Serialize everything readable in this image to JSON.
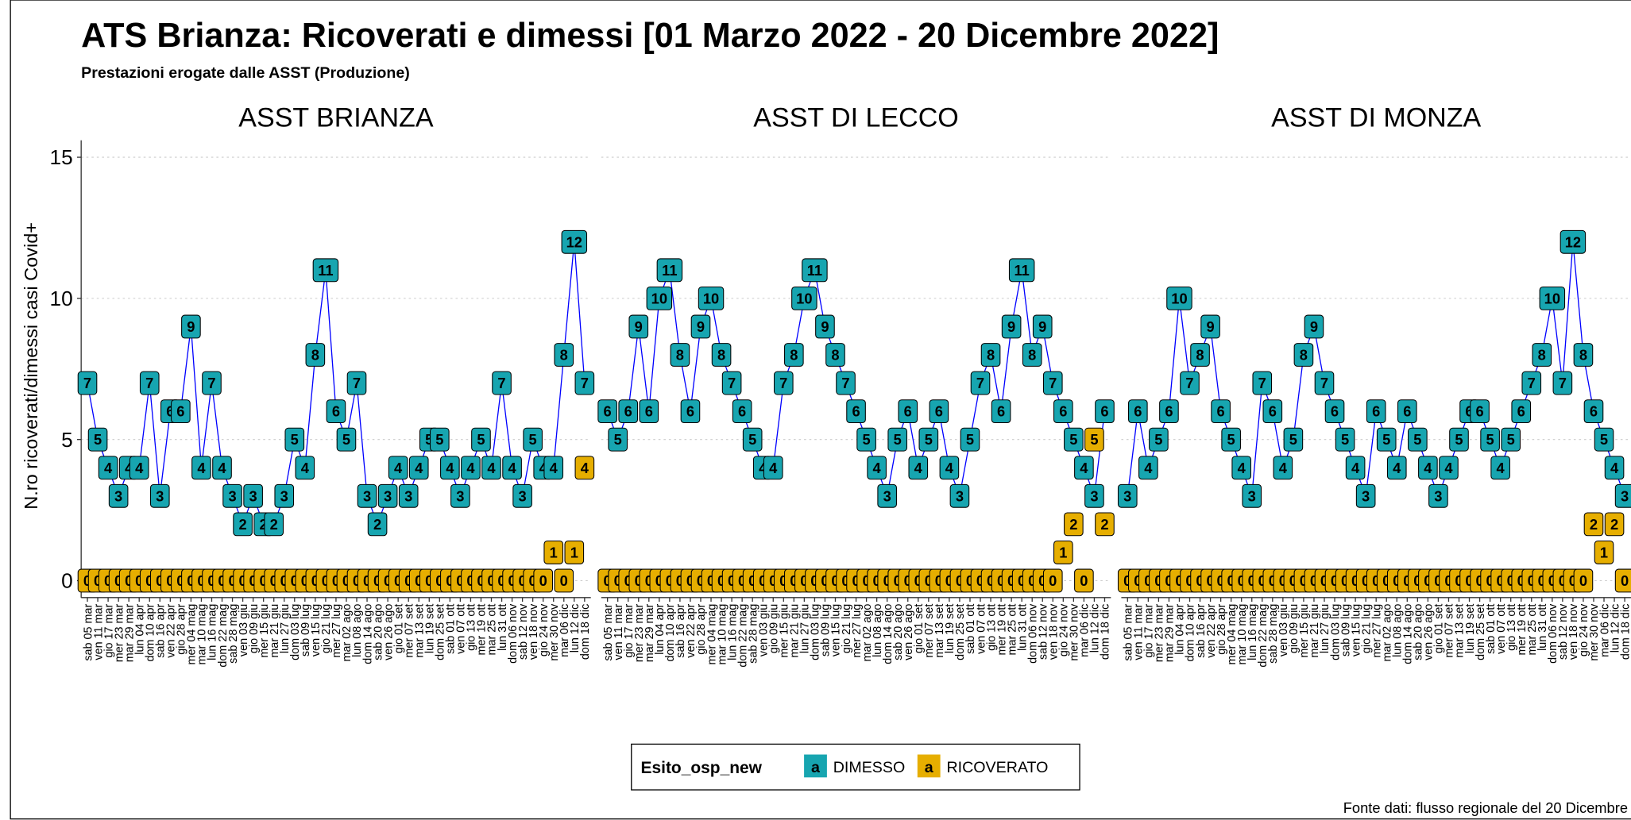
{
  "page": {
    "title": "ATS Brianza: Ricoverati e dimessi [01 Marzo 2022 - 20 Dicembre 2022]",
    "subtitle": "Prestazioni erogate dalle ASST (Produzione)",
    "y_label": "N.ro ricoverati/dimessi casi Covid+",
    "legend_title": "Esito_osp_new",
    "key_glyph": "a",
    "source": "Fonte dati: flusso regionale del 20 Dicembre"
  },
  "chart_data": [
    {
      "type": "line",
      "title": "ASST BRIANZA",
      "line_color": "#0000ff",
      "ylim": [
        -0.6,
        15.6
      ],
      "yticks": [
        0,
        5,
        10,
        15
      ],
      "grid": true,
      "categories": [
        "sab 05 mar",
        "ven 11 mar",
        "gio 17 mar",
        "mer 23 mar",
        "mar 29 mar",
        "lun 04 apr",
        "dom 10 apr",
        "sab 16 apr",
        "ven 22 apr",
        "gio 28 apr",
        "mer 04 mag",
        "mar 10 mag",
        "lun 16 mag",
        "dom 22 mag",
        "sab 28 mag",
        "ven 03 giu",
        "gio 09 giu",
        "mer 15 giu",
        "mar 21 giu",
        "lun 27 giu",
        "dom 03 lug",
        "sab 09 lug",
        "ven 15 lug",
        "gio 21 lug",
        "mer 27 lug",
        "mar 02 ago",
        "lun 08 ago",
        "dom 14 ago",
        "sab 20 ago",
        "ven 26 ago",
        "gio 01 set",
        "mer 07 set",
        "mar 13 set",
        "lun 19 set",
        "dom 25 set",
        "sab 01 ott",
        "ven 07 ott",
        "gio 13 ott",
        "mer 19 ott",
        "mar 25 ott",
        "lun 31 ott",
        "dom 06 nov",
        "sab 12 nov",
        "ven 18 nov",
        "gio 24 nov",
        "mer 30 nov",
        "mar 06 dic",
        "lun 12 dic",
        "dom 18 dic"
      ],
      "series": [
        {
          "name": "DIMESSO",
          "color": "#17a5b0",
          "values": [
            7,
            5,
            4,
            3,
            4,
            4,
            7,
            3,
            6,
            6,
            9,
            4,
            7,
            4,
            3,
            2,
            3,
            2,
            2,
            3,
            5,
            4,
            8,
            11,
            6,
            5,
            7,
            3,
            2,
            3,
            4,
            3,
            4,
            5,
            5,
            4,
            3,
            4,
            5,
            4,
            7,
            4,
            3,
            5,
            4,
            4,
            8,
            12,
            7
          ]
        },
        {
          "name": "RICOVERATO",
          "color": "#e6ae00",
          "values": [
            0,
            0,
            0,
            0,
            0,
            0,
            0,
            0,
            0,
            0,
            0,
            0,
            0,
            0,
            0,
            0,
            0,
            0,
            0,
            0,
            0,
            0,
            0,
            0,
            0,
            0,
            0,
            0,
            0,
            0,
            0,
            0,
            0,
            0,
            0,
            0,
            0,
            0,
            0,
            0,
            0,
            0,
            0,
            0,
            0,
            1,
            0,
            1,
            4
          ]
        }
      ]
    },
    {
      "type": "line",
      "title": "ASST DI LECCO",
      "line_color": "#0000ff",
      "ylim": [
        -0.6,
        15.6
      ],
      "yticks": [
        0,
        5,
        10,
        15
      ],
      "grid": true,
      "categories": [
        "sab 05 mar",
        "ven 11 mar",
        "gio 17 mar",
        "mer 23 mar",
        "mar 29 mar",
        "lun 04 apr",
        "dom 10 apr",
        "sab 16 apr",
        "ven 22 apr",
        "gio 28 apr",
        "mer 04 mag",
        "mar 10 mag",
        "lun 16 mag",
        "dom 22 mag",
        "sab 28 mag",
        "ven 03 giu",
        "gio 09 giu",
        "mer 15 giu",
        "mar 21 giu",
        "lun 27 giu",
        "dom 03 lug",
        "sab 09 lug",
        "ven 15 lug",
        "gio 21 lug",
        "mer 27 lug",
        "mar 02 ago",
        "lun 08 ago",
        "dom 14 ago",
        "sab 20 ago",
        "ven 26 ago",
        "gio 01 set",
        "mer 07 set",
        "mar 13 set",
        "lun 19 set",
        "dom 25 set",
        "sab 01 ott",
        "ven 07 ott",
        "gio 13 ott",
        "mer 19 ott",
        "mar 25 ott",
        "lun 31 ott",
        "dom 06 nov",
        "sab 12 nov",
        "ven 18 nov",
        "gio 24 nov",
        "mer 30 nov",
        "mar 06 dic",
        "lun 12 dic",
        "dom 18 dic"
      ],
      "series": [
        {
          "name": "DIMESSO",
          "color": "#17a5b0",
          "values": [
            6,
            5,
            6,
            9,
            6,
            10,
            11,
            8,
            6,
            9,
            10,
            8,
            7,
            6,
            5,
            4,
            4,
            7,
            8,
            10,
            11,
            9,
            8,
            7,
            6,
            5,
            4,
            3,
            5,
            6,
            4,
            5,
            6,
            4,
            3,
            5,
            7,
            8,
            6,
            9,
            11,
            8,
            9,
            7,
            6,
            5,
            4,
            3,
            6
          ]
        },
        {
          "name": "RICOVERATO",
          "color": "#e6ae00",
          "values": [
            0,
            0,
            0,
            0,
            0,
            0,
            0,
            0,
            0,
            0,
            0,
            0,
            0,
            0,
            0,
            0,
            0,
            0,
            0,
            0,
            0,
            0,
            0,
            0,
            0,
            0,
            0,
            0,
            0,
            0,
            0,
            0,
            0,
            0,
            0,
            0,
            0,
            0,
            0,
            0,
            0,
            0,
            0,
            0,
            1,
            2,
            0,
            5,
            2
          ]
        }
      ]
    },
    {
      "type": "line",
      "title": "ASST DI MONZA",
      "line_color": "#0000ff",
      "ylim": [
        -0.6,
        15.6
      ],
      "yticks": [
        0,
        5,
        10,
        15
      ],
      "grid": true,
      "categories": [
        "sab 05 mar",
        "ven 11 mar",
        "gio 17 mar",
        "mer 23 mar",
        "mar 29 mar",
        "lun 04 apr",
        "dom 10 apr",
        "sab 16 apr",
        "ven 22 apr",
        "gio 28 apr",
        "mer 04 mag",
        "mar 10 mag",
        "lun 16 mag",
        "dom 22 mag",
        "sab 28 mag",
        "ven 03 giu",
        "gio 09 giu",
        "mer 15 giu",
        "mar 21 giu",
        "lun 27 giu",
        "dom 03 lug",
        "sab 09 lug",
        "ven 15 lug",
        "gio 21 lug",
        "mer 27 lug",
        "mar 02 ago",
        "lun 08 ago",
        "dom 14 ago",
        "sab 20 ago",
        "ven 26 ago",
        "gio 01 set",
        "mer 07 set",
        "mar 13 set",
        "lun 19 set",
        "dom 25 set",
        "sab 01 ott",
        "ven 07 ott",
        "gio 13 ott",
        "mer 19 ott",
        "mar 25 ott",
        "lun 31 ott",
        "dom 06 nov",
        "sab 12 nov",
        "ven 18 nov",
        "gio 24 nov",
        "mer 30 nov",
        "mar 06 dic",
        "lun 12 dic",
        "dom 18 dic"
      ],
      "series": [
        {
          "name": "DIMESSO",
          "color": "#17a5b0",
          "values": [
            3,
            6,
            4,
            5,
            6,
            10,
            7,
            8,
            9,
            6,
            5,
            4,
            3,
            7,
            6,
            4,
            5,
            8,
            9,
            7,
            6,
            5,
            4,
            3,
            6,
            5,
            4,
            6,
            5,
            4,
            3,
            4,
            5,
            6,
            6,
            5,
            4,
            5,
            6,
            7,
            8,
            10,
            7,
            12,
            8,
            6,
            5,
            4,
            3
          ]
        },
        {
          "name": "RICOVERATO",
          "color": "#e6ae00",
          "values": [
            0,
            0,
            0,
            0,
            0,
            0,
            0,
            0,
            0,
            0,
            0,
            0,
            0,
            0,
            0,
            0,
            0,
            0,
            0,
            0,
            0,
            0,
            0,
            0,
            0,
            0,
            0,
            0,
            0,
            0,
            0,
            0,
            0,
            0,
            0,
            0,
            0,
            0,
            0,
            0,
            0,
            0,
            0,
            0,
            0,
            2,
            1,
            2,
            0
          ]
        }
      ]
    }
  ]
}
